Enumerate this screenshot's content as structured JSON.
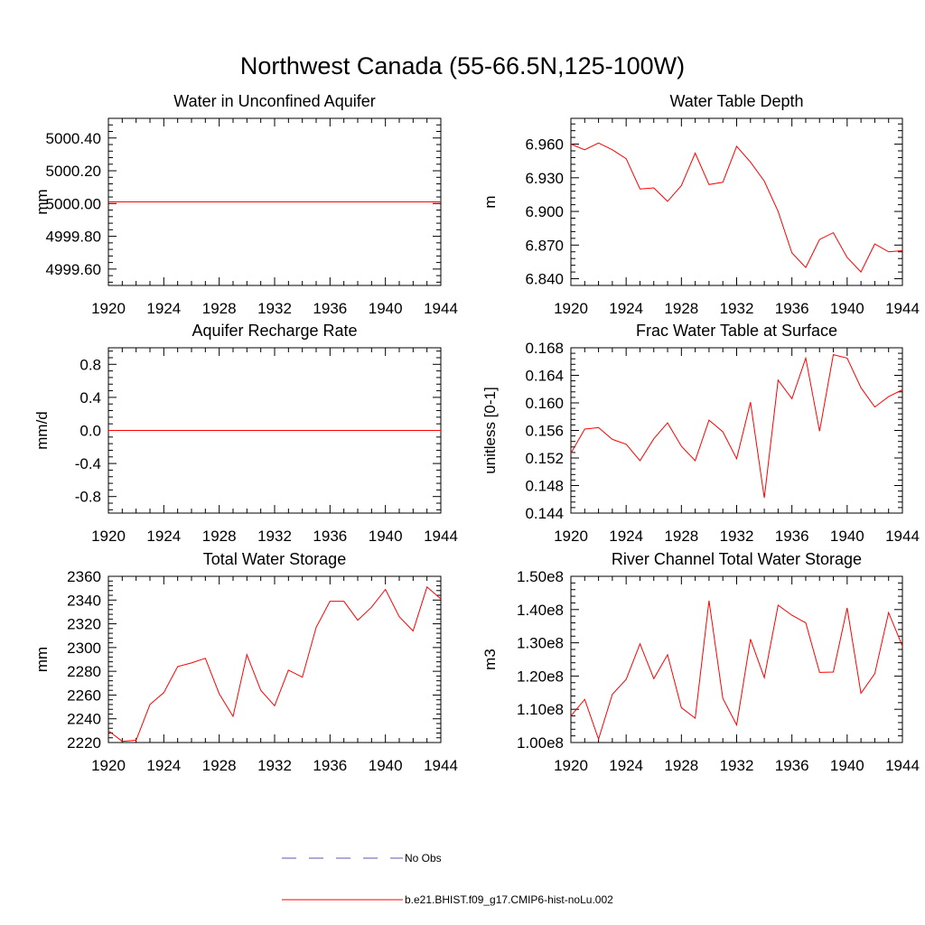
{
  "title": "Northwest Canada (55-66.5N,125-100W)",
  "colors": {
    "model": "#ff0000",
    "obs": "#5a5aa8",
    "axes": "#000000"
  },
  "legend": {
    "position": "bottom-center",
    "entries": [
      {
        "label": "No Obs",
        "style": "dashed",
        "color": "#5a5aa8"
      },
      {
        "label": "b.e21.BHIST.f09_g17.CMIP6-hist-noLu.002",
        "style": "solid",
        "color": "#ff0000"
      }
    ]
  },
  "chart_data": [
    {
      "type": "line",
      "title": "Water in Unconfined Aquifer",
      "ylabel": "mm",
      "xlim": [
        1920,
        1944
      ],
      "ylim": [
        4999.5,
        5000.52
      ],
      "xticks": [
        "1920",
        "1924",
        "1928",
        "1932",
        "1936",
        "1940",
        "1944"
      ],
      "yticks": [
        {
          "v": 4999.6,
          "label": "4999.60"
        },
        {
          "v": 4999.8,
          "label": "4999.80"
        },
        {
          "v": 5000.0,
          "label": "5000.00"
        },
        {
          "v": 5000.2,
          "label": "5000.20"
        },
        {
          "v": 5000.4,
          "label": "5000.40"
        }
      ],
      "x": [
        1920,
        1921,
        1922,
        1923,
        1924,
        1925,
        1926,
        1927,
        1928,
        1929,
        1930,
        1931,
        1932,
        1933,
        1934,
        1935,
        1936,
        1937,
        1938,
        1939,
        1940,
        1941,
        1942,
        1943,
        1944
      ],
      "series": [
        {
          "values": [
            5000.01,
            5000.01,
            5000.01,
            5000.01,
            5000.01,
            5000.01,
            5000.01,
            5000.01,
            5000.01,
            5000.01,
            5000.01,
            5000.01,
            5000.01,
            5000.01,
            5000.01,
            5000.01,
            5000.01,
            5000.01,
            5000.01,
            5000.01,
            5000.01,
            5000.01,
            5000.01,
            5000.01,
            5000.01
          ]
        }
      ]
    },
    {
      "type": "line",
      "title": "Water Table Depth",
      "ylabel": "m",
      "xlim": [
        1920,
        1944
      ],
      "ylim": [
        6.834,
        6.983
      ],
      "xticks": [
        "1920",
        "1924",
        "1928",
        "1932",
        "1936",
        "1940",
        "1944"
      ],
      "yticks": [
        {
          "v": 6.84,
          "label": "6.840"
        },
        {
          "v": 6.87,
          "label": "6.870"
        },
        {
          "v": 6.9,
          "label": "6.900"
        },
        {
          "v": 6.93,
          "label": "6.930"
        },
        {
          "v": 6.96,
          "label": "6.960"
        }
      ],
      "x": [
        1920,
        1921,
        1922,
        1923,
        1924,
        1925,
        1926,
        1927,
        1928,
        1929,
        1930,
        1931,
        1932,
        1933,
        1934,
        1935,
        1936,
        1937,
        1938,
        1939,
        1940,
        1941,
        1942,
        1943,
        1944
      ],
      "series": [
        {
          "values": [
            6.96,
            6.955,
            6.961,
            6.955,
            6.947,
            6.92,
            6.921,
            6.909,
            6.923,
            6.952,
            6.924,
            6.926,
            6.958,
            6.944,
            6.927,
            6.9,
            6.863,
            6.85,
            6.875,
            6.881,
            6.859,
            6.846,
            6.871,
            6.864,
            6.865
          ]
        }
      ]
    },
    {
      "type": "line",
      "title": "Aquifer Recharge Rate",
      "ylabel": "mm/d",
      "xlim": [
        1920,
        1944
      ],
      "ylim": [
        -1.0,
        1.0
      ],
      "xticks": [
        "1920",
        "1924",
        "1928",
        "1932",
        "1936",
        "1940",
        "1944"
      ],
      "yticks": [
        {
          "v": -0.8,
          "label": "-0.8"
        },
        {
          "v": -0.4,
          "label": "-0.4"
        },
        {
          "v": 0.0,
          "label": "0.0"
        },
        {
          "v": 0.4,
          "label": "0.4"
        },
        {
          "v": 0.8,
          "label": "0.8"
        }
      ],
      "x": [
        1920,
        1921,
        1922,
        1923,
        1924,
        1925,
        1926,
        1927,
        1928,
        1929,
        1930,
        1931,
        1932,
        1933,
        1934,
        1935,
        1936,
        1937,
        1938,
        1939,
        1940,
        1941,
        1942,
        1943,
        1944
      ],
      "series": [
        {
          "values": [
            0,
            0,
            0,
            0,
            0,
            0,
            0,
            0,
            0,
            0,
            0,
            0,
            0,
            0,
            0,
            0,
            0,
            0,
            0,
            0,
            0,
            0,
            0,
            0,
            0
          ]
        }
      ]
    },
    {
      "type": "line",
      "title": "Frac Water Table at Surface",
      "ylabel": "unitless [0-1]",
      "xlim": [
        1920,
        1944
      ],
      "ylim": [
        0.144,
        0.168
      ],
      "xticks": [
        "1920",
        "1924",
        "1928",
        "1932",
        "1936",
        "1940",
        "1944"
      ],
      "yticks": [
        {
          "v": 0.144,
          "label": "0.144"
        },
        {
          "v": 0.148,
          "label": "0.148"
        },
        {
          "v": 0.152,
          "label": "0.152"
        },
        {
          "v": 0.156,
          "label": "0.156"
        },
        {
          "v": 0.16,
          "label": "0.160"
        },
        {
          "v": 0.164,
          "label": "0.164"
        },
        {
          "v": 0.168,
          "label": "0.168"
        }
      ],
      "x": [
        1920,
        1921,
        1922,
        1923,
        1924,
        1925,
        1926,
        1927,
        1928,
        1929,
        1930,
        1931,
        1932,
        1933,
        1934,
        1935,
        1936,
        1937,
        1938,
        1939,
        1940,
        1941,
        1942,
        1943,
        1944
      ],
      "series": [
        {
          "values": [
            0.1527,
            0.1562,
            0.1564,
            0.1547,
            0.154,
            0.1516,
            0.1548,
            0.1571,
            0.1537,
            0.1516,
            0.1575,
            0.1558,
            0.1519,
            0.1601,
            0.1462,
            0.1633,
            0.1606,
            0.1665,
            0.1559,
            0.167,
            0.1665,
            0.1622,
            0.1594,
            0.1609,
            0.1619
          ]
        }
      ]
    },
    {
      "type": "line",
      "title": "Total Water Storage",
      "ylabel": "mm",
      "xlim": [
        1920,
        1944
      ],
      "ylim": [
        2220,
        2360
      ],
      "xticks": [
        "1920",
        "1924",
        "1928",
        "1932",
        "1936",
        "1940",
        "1944"
      ],
      "yticks": [
        {
          "v": 2220,
          "label": "2220"
        },
        {
          "v": 2240,
          "label": "2240"
        },
        {
          "v": 2260,
          "label": "2260"
        },
        {
          "v": 2280,
          "label": "2280"
        },
        {
          "v": 2300,
          "label": "2300"
        },
        {
          "v": 2320,
          "label": "2320"
        },
        {
          "v": 2340,
          "label": "2340"
        },
        {
          "v": 2360,
          "label": "2360"
        }
      ],
      "x": [
        1920,
        1921,
        1922,
        1923,
        1924,
        1925,
        1926,
        1927,
        1928,
        1929,
        1930,
        1931,
        1932,
        1933,
        1934,
        1935,
        1936,
        1937,
        1938,
        1939,
        1940,
        1941,
        1942,
        1943,
        1944
      ],
      "series": [
        {
          "values": [
            2230,
            2221,
            2222,
            2252,
            2262,
            2284,
            2287,
            2291,
            2261,
            2242,
            2294,
            2264,
            2251,
            2281,
            2275,
            2317,
            2339,
            2339,
            2323,
            2334,
            2349,
            2326,
            2314,
            2351,
            2341
          ]
        }
      ]
    },
    {
      "type": "line",
      "title": "River Channel Total Water Storage",
      "ylabel": "m3",
      "xlim": [
        1920,
        1944
      ],
      "ylim": [
        100000000.0,
        150000000.0
      ],
      "xticks": [
        "1920",
        "1924",
        "1928",
        "1932",
        "1936",
        "1940",
        "1944"
      ],
      "yticks": [
        {
          "v": 100000000.0,
          "label": "1.00e8"
        },
        {
          "v": 110000000.0,
          "label": "1.10e8"
        },
        {
          "v": 120000000.0,
          "label": "1.20e8"
        },
        {
          "v": 130000000.0,
          "label": "1.30e8"
        },
        {
          "v": 140000000.0,
          "label": "1.40e8"
        },
        {
          "v": 150000000.0,
          "label": "1.50e8"
        }
      ],
      "x": [
        1920,
        1921,
        1922,
        1923,
        1924,
        1925,
        1926,
        1927,
        1928,
        1929,
        1930,
        1931,
        1932,
        1933,
        1934,
        1935,
        1936,
        1937,
        1938,
        1939,
        1940,
        1941,
        1942,
        1943,
        1944
      ],
      "series": [
        {
          "values": [
            108000000.0,
            113000000.0,
            101000000.0,
            114500000.0,
            119000000.0,
            129700000.0,
            119200000.0,
            126400000.0,
            110500000.0,
            107300000.0,
            142700000.0,
            113300000.0,
            105300000.0,
            131100000.0,
            119500000.0,
            141300000.0,
            138300000.0,
            136000000.0,
            121100000.0,
            121200000.0,
            140500000.0,
            114800000.0,
            120700000.0,
            139100000.0,
            129000000.0
          ]
        }
      ]
    }
  ]
}
